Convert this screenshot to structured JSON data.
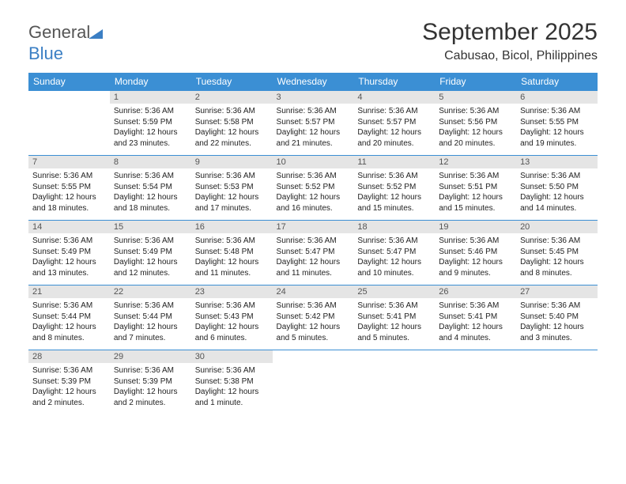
{
  "logo": {
    "text1": "General",
    "text2": "Blue"
  },
  "title": "September 2025",
  "subtitle": "Cabusao, Bicol, Philippines",
  "colors": {
    "header_bg": "#3b8fd4",
    "header_fg": "#ffffff",
    "daynum_bg": "#e5e5e5",
    "daynum_fg": "#555555",
    "text": "#222222",
    "rule": "#3b8fd4",
    "logo_gray": "#555555",
    "logo_blue": "#3b7fc4"
  },
  "day_labels": [
    "Sunday",
    "Monday",
    "Tuesday",
    "Wednesday",
    "Thursday",
    "Friday",
    "Saturday"
  ],
  "weeks": [
    [
      null,
      {
        "n": "1",
        "sr": "5:36 AM",
        "ss": "5:59 PM",
        "dl": "12 hours and 23 minutes."
      },
      {
        "n": "2",
        "sr": "5:36 AM",
        "ss": "5:58 PM",
        "dl": "12 hours and 22 minutes."
      },
      {
        "n": "3",
        "sr": "5:36 AM",
        "ss": "5:57 PM",
        "dl": "12 hours and 21 minutes."
      },
      {
        "n": "4",
        "sr": "5:36 AM",
        "ss": "5:57 PM",
        "dl": "12 hours and 20 minutes."
      },
      {
        "n": "5",
        "sr": "5:36 AM",
        "ss": "5:56 PM",
        "dl": "12 hours and 20 minutes."
      },
      {
        "n": "6",
        "sr": "5:36 AM",
        "ss": "5:55 PM",
        "dl": "12 hours and 19 minutes."
      }
    ],
    [
      {
        "n": "7",
        "sr": "5:36 AM",
        "ss": "5:55 PM",
        "dl": "12 hours and 18 minutes."
      },
      {
        "n": "8",
        "sr": "5:36 AM",
        "ss": "5:54 PM",
        "dl": "12 hours and 18 minutes."
      },
      {
        "n": "9",
        "sr": "5:36 AM",
        "ss": "5:53 PM",
        "dl": "12 hours and 17 minutes."
      },
      {
        "n": "10",
        "sr": "5:36 AM",
        "ss": "5:52 PM",
        "dl": "12 hours and 16 minutes."
      },
      {
        "n": "11",
        "sr": "5:36 AM",
        "ss": "5:52 PM",
        "dl": "12 hours and 15 minutes."
      },
      {
        "n": "12",
        "sr": "5:36 AM",
        "ss": "5:51 PM",
        "dl": "12 hours and 15 minutes."
      },
      {
        "n": "13",
        "sr": "5:36 AM",
        "ss": "5:50 PM",
        "dl": "12 hours and 14 minutes."
      }
    ],
    [
      {
        "n": "14",
        "sr": "5:36 AM",
        "ss": "5:49 PM",
        "dl": "12 hours and 13 minutes."
      },
      {
        "n": "15",
        "sr": "5:36 AM",
        "ss": "5:49 PM",
        "dl": "12 hours and 12 minutes."
      },
      {
        "n": "16",
        "sr": "5:36 AM",
        "ss": "5:48 PM",
        "dl": "12 hours and 11 minutes."
      },
      {
        "n": "17",
        "sr": "5:36 AM",
        "ss": "5:47 PM",
        "dl": "12 hours and 11 minutes."
      },
      {
        "n": "18",
        "sr": "5:36 AM",
        "ss": "5:47 PM",
        "dl": "12 hours and 10 minutes."
      },
      {
        "n": "19",
        "sr": "5:36 AM",
        "ss": "5:46 PM",
        "dl": "12 hours and 9 minutes."
      },
      {
        "n": "20",
        "sr": "5:36 AM",
        "ss": "5:45 PM",
        "dl": "12 hours and 8 minutes."
      }
    ],
    [
      {
        "n": "21",
        "sr": "5:36 AM",
        "ss": "5:44 PM",
        "dl": "12 hours and 8 minutes."
      },
      {
        "n": "22",
        "sr": "5:36 AM",
        "ss": "5:44 PM",
        "dl": "12 hours and 7 minutes."
      },
      {
        "n": "23",
        "sr": "5:36 AM",
        "ss": "5:43 PM",
        "dl": "12 hours and 6 minutes."
      },
      {
        "n": "24",
        "sr": "5:36 AM",
        "ss": "5:42 PM",
        "dl": "12 hours and 5 minutes."
      },
      {
        "n": "25",
        "sr": "5:36 AM",
        "ss": "5:41 PM",
        "dl": "12 hours and 5 minutes."
      },
      {
        "n": "26",
        "sr": "5:36 AM",
        "ss": "5:41 PM",
        "dl": "12 hours and 4 minutes."
      },
      {
        "n": "27",
        "sr": "5:36 AM",
        "ss": "5:40 PM",
        "dl": "12 hours and 3 minutes."
      }
    ],
    [
      {
        "n": "28",
        "sr": "5:36 AM",
        "ss": "5:39 PM",
        "dl": "12 hours and 2 minutes."
      },
      {
        "n": "29",
        "sr": "5:36 AM",
        "ss": "5:39 PM",
        "dl": "12 hours and 2 minutes."
      },
      {
        "n": "30",
        "sr": "5:36 AM",
        "ss": "5:38 PM",
        "dl": "12 hours and 1 minute."
      },
      null,
      null,
      null,
      null
    ]
  ],
  "labels": {
    "sunrise": "Sunrise:",
    "sunset": "Sunset:",
    "daylight": "Daylight:"
  }
}
